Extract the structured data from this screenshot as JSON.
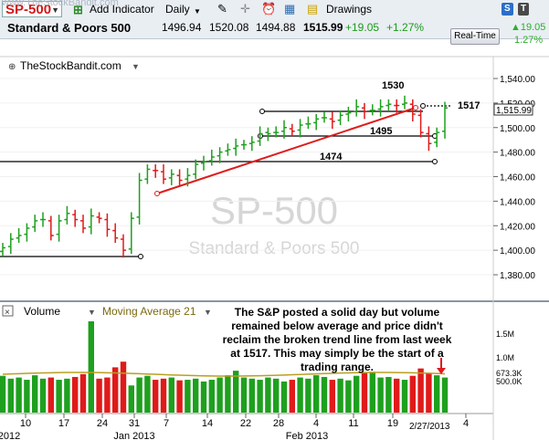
{
  "watermark_url": "www.TheStockBandit.com",
  "toolbar": {
    "symbol": "SP-500",
    "add_indicator": "Add Indicator",
    "period": "Daily",
    "drawings": "Drawings",
    "s_badge": "S",
    "t_badge": "T",
    "realtime_label": "Real-Time"
  },
  "quote": {
    "name": "Standard & Poors 500",
    "open": "1496.94",
    "high": "1520.08",
    "low": "1494.88",
    "last": "1515.99",
    "change": "+19.05",
    "change_pct": "+1.27%",
    "side_change": "19.05",
    "side_pct": "1.27%"
  },
  "chart": {
    "source_label": "TheStockBandit.com",
    "watermark_symbol": "SP-500",
    "watermark_name": "Standard & Poors 500",
    "price_axis": [
      "1,540.00",
      "1,520.00",
      "1,500.00",
      "1,480.00",
      "1,460.00",
      "1,440.00",
      "1,420.00",
      "1,400.00",
      "1,380.00"
    ],
    "last_price_tag": "1,515.99",
    "levels": [
      "1530",
      "1517",
      "1495",
      "1474"
    ],
    "volume_label": "Volume",
    "ma_label": "Moving Average 21",
    "volume_axis": [
      "1.5M",
      "1.0M",
      "673.3K",
      "500.0K"
    ],
    "annotation": "The S&P posted a solid day but volume remained below average and price didn't reclaim the broken trend line from last week at 1517. This may simply be the start of a trading range.",
    "x_axis": [
      "10",
      "17",
      "24",
      "31",
      "7",
      "14",
      "22",
      "28",
      "4",
      "11",
      "19",
      "4"
    ],
    "x_months": [
      "2012",
      "Jan 2013",
      "Feb 2013"
    ],
    "date_tag": "2/27/2013"
  },
  "colors": {
    "up": "#1ea01e",
    "down": "#e01a1a",
    "trend": "#e01a1a",
    "symbol": "#d01818"
  }
}
